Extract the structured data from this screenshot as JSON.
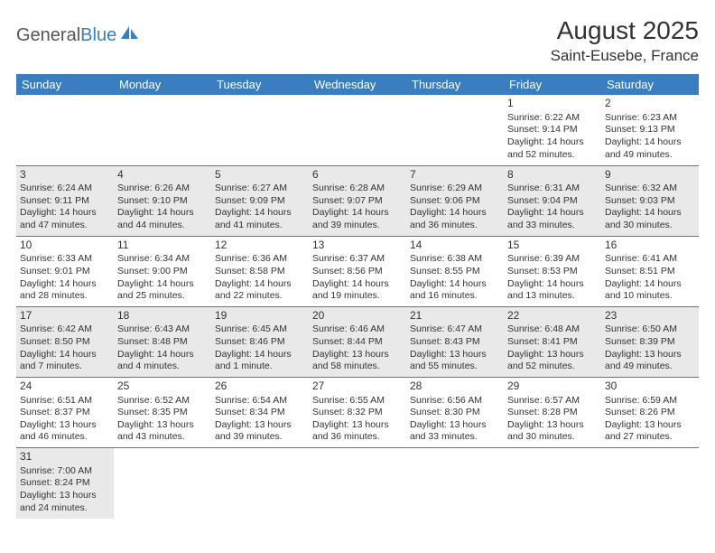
{
  "logo": {
    "general": "General",
    "blue": "Blue"
  },
  "title": "August 2025",
  "location": "Saint-Eusebe, France",
  "colors": {
    "header_bg": "#3a7ebf",
    "header_text": "#ffffff",
    "shaded_bg": "#e9e9e9",
    "border": "#3a7ebf",
    "text": "#333333",
    "page_bg": "#ffffff",
    "logo_gray": "#555555",
    "logo_blue": "#3a7ebf"
  },
  "days_of_week": [
    "Sunday",
    "Monday",
    "Tuesday",
    "Wednesday",
    "Thursday",
    "Friday",
    "Saturday"
  ],
  "weeks": [
    [
      null,
      null,
      null,
      null,
      null,
      {
        "n": "1",
        "sunrise": "Sunrise: 6:22 AM",
        "sunset": "Sunset: 9:14 PM",
        "day1": "Daylight: 14 hours",
        "day2": "and 52 minutes."
      },
      {
        "n": "2",
        "sunrise": "Sunrise: 6:23 AM",
        "sunset": "Sunset: 9:13 PM",
        "day1": "Daylight: 14 hours",
        "day2": "and 49 minutes."
      }
    ],
    [
      {
        "n": "3",
        "sunrise": "Sunrise: 6:24 AM",
        "sunset": "Sunset: 9:11 PM",
        "day1": "Daylight: 14 hours",
        "day2": "and 47 minutes."
      },
      {
        "n": "4",
        "sunrise": "Sunrise: 6:26 AM",
        "sunset": "Sunset: 9:10 PM",
        "day1": "Daylight: 14 hours",
        "day2": "and 44 minutes."
      },
      {
        "n": "5",
        "sunrise": "Sunrise: 6:27 AM",
        "sunset": "Sunset: 9:09 PM",
        "day1": "Daylight: 14 hours",
        "day2": "and 41 minutes."
      },
      {
        "n": "6",
        "sunrise": "Sunrise: 6:28 AM",
        "sunset": "Sunset: 9:07 PM",
        "day1": "Daylight: 14 hours",
        "day2": "and 39 minutes."
      },
      {
        "n": "7",
        "sunrise": "Sunrise: 6:29 AM",
        "sunset": "Sunset: 9:06 PM",
        "day1": "Daylight: 14 hours",
        "day2": "and 36 minutes."
      },
      {
        "n": "8",
        "sunrise": "Sunrise: 6:31 AM",
        "sunset": "Sunset: 9:04 PM",
        "day1": "Daylight: 14 hours",
        "day2": "and 33 minutes."
      },
      {
        "n": "9",
        "sunrise": "Sunrise: 6:32 AM",
        "sunset": "Sunset: 9:03 PM",
        "day1": "Daylight: 14 hours",
        "day2": "and 30 minutes."
      }
    ],
    [
      {
        "n": "10",
        "sunrise": "Sunrise: 6:33 AM",
        "sunset": "Sunset: 9:01 PM",
        "day1": "Daylight: 14 hours",
        "day2": "and 28 minutes."
      },
      {
        "n": "11",
        "sunrise": "Sunrise: 6:34 AM",
        "sunset": "Sunset: 9:00 PM",
        "day1": "Daylight: 14 hours",
        "day2": "and 25 minutes."
      },
      {
        "n": "12",
        "sunrise": "Sunrise: 6:36 AM",
        "sunset": "Sunset: 8:58 PM",
        "day1": "Daylight: 14 hours",
        "day2": "and 22 minutes."
      },
      {
        "n": "13",
        "sunrise": "Sunrise: 6:37 AM",
        "sunset": "Sunset: 8:56 PM",
        "day1": "Daylight: 14 hours",
        "day2": "and 19 minutes."
      },
      {
        "n": "14",
        "sunrise": "Sunrise: 6:38 AM",
        "sunset": "Sunset: 8:55 PM",
        "day1": "Daylight: 14 hours",
        "day2": "and 16 minutes."
      },
      {
        "n": "15",
        "sunrise": "Sunrise: 6:39 AM",
        "sunset": "Sunset: 8:53 PM",
        "day1": "Daylight: 14 hours",
        "day2": "and 13 minutes."
      },
      {
        "n": "16",
        "sunrise": "Sunrise: 6:41 AM",
        "sunset": "Sunset: 8:51 PM",
        "day1": "Daylight: 14 hours",
        "day2": "and 10 minutes."
      }
    ],
    [
      {
        "n": "17",
        "sunrise": "Sunrise: 6:42 AM",
        "sunset": "Sunset: 8:50 PM",
        "day1": "Daylight: 14 hours",
        "day2": "and 7 minutes."
      },
      {
        "n": "18",
        "sunrise": "Sunrise: 6:43 AM",
        "sunset": "Sunset: 8:48 PM",
        "day1": "Daylight: 14 hours",
        "day2": "and 4 minutes."
      },
      {
        "n": "19",
        "sunrise": "Sunrise: 6:45 AM",
        "sunset": "Sunset: 8:46 PM",
        "day1": "Daylight: 14 hours",
        "day2": "and 1 minute."
      },
      {
        "n": "20",
        "sunrise": "Sunrise: 6:46 AM",
        "sunset": "Sunset: 8:44 PM",
        "day1": "Daylight: 13 hours",
        "day2": "and 58 minutes."
      },
      {
        "n": "21",
        "sunrise": "Sunrise: 6:47 AM",
        "sunset": "Sunset: 8:43 PM",
        "day1": "Daylight: 13 hours",
        "day2": "and 55 minutes."
      },
      {
        "n": "22",
        "sunrise": "Sunrise: 6:48 AM",
        "sunset": "Sunset: 8:41 PM",
        "day1": "Daylight: 13 hours",
        "day2": "and 52 minutes."
      },
      {
        "n": "23",
        "sunrise": "Sunrise: 6:50 AM",
        "sunset": "Sunset: 8:39 PM",
        "day1": "Daylight: 13 hours",
        "day2": "and 49 minutes."
      }
    ],
    [
      {
        "n": "24",
        "sunrise": "Sunrise: 6:51 AM",
        "sunset": "Sunset: 8:37 PM",
        "day1": "Daylight: 13 hours",
        "day2": "and 46 minutes."
      },
      {
        "n": "25",
        "sunrise": "Sunrise: 6:52 AM",
        "sunset": "Sunset: 8:35 PM",
        "day1": "Daylight: 13 hours",
        "day2": "and 43 minutes."
      },
      {
        "n": "26",
        "sunrise": "Sunrise: 6:54 AM",
        "sunset": "Sunset: 8:34 PM",
        "day1": "Daylight: 13 hours",
        "day2": "and 39 minutes."
      },
      {
        "n": "27",
        "sunrise": "Sunrise: 6:55 AM",
        "sunset": "Sunset: 8:32 PM",
        "day1": "Daylight: 13 hours",
        "day2": "and 36 minutes."
      },
      {
        "n": "28",
        "sunrise": "Sunrise: 6:56 AM",
        "sunset": "Sunset: 8:30 PM",
        "day1": "Daylight: 13 hours",
        "day2": "and 33 minutes."
      },
      {
        "n": "29",
        "sunrise": "Sunrise: 6:57 AM",
        "sunset": "Sunset: 8:28 PM",
        "day1": "Daylight: 13 hours",
        "day2": "and 30 minutes."
      },
      {
        "n": "30",
        "sunrise": "Sunrise: 6:59 AM",
        "sunset": "Sunset: 8:26 PM",
        "day1": "Daylight: 13 hours",
        "day2": "and 27 minutes."
      }
    ],
    [
      {
        "n": "31",
        "sunrise": "Sunrise: 7:00 AM",
        "sunset": "Sunset: 8:24 PM",
        "day1": "Daylight: 13 hours",
        "day2": "and 24 minutes."
      },
      null,
      null,
      null,
      null,
      null,
      null
    ]
  ]
}
